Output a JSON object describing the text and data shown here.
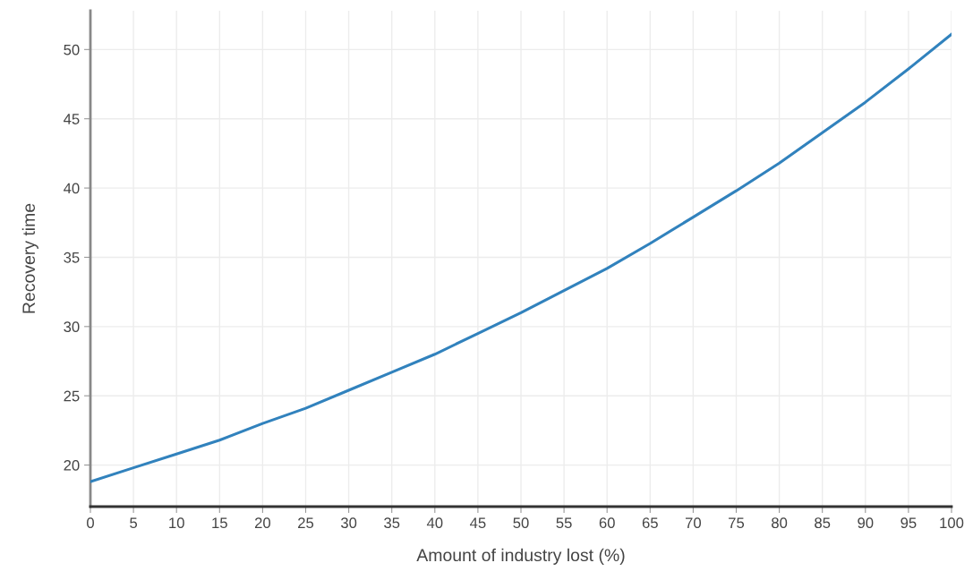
{
  "chart_data": {
    "type": "line",
    "xlabel": "Amount of industry lost (%)",
    "ylabel": "Recovery time",
    "x": [
      0,
      5,
      10,
      15,
      20,
      25,
      30,
      35,
      40,
      45,
      50,
      55,
      60,
      65,
      70,
      75,
      80,
      85,
      90,
      95,
      100
    ],
    "series": [
      {
        "color": "#3182bd",
        "values": [
          18.8,
          19.8,
          20.8,
          21.8,
          23.0,
          24.1,
          25.4,
          26.7,
          28.0,
          29.5,
          31.0,
          32.6,
          34.2,
          36.0,
          37.9,
          39.8,
          41.8,
          44.0,
          46.2,
          48.6,
          51.1
        ]
      }
    ],
    "xlim": [
      0,
      100
    ],
    "xticks": [
      0,
      5,
      10,
      15,
      20,
      25,
      30,
      35,
      40,
      45,
      50,
      55,
      60,
      65,
      70,
      75,
      80,
      85,
      90,
      95,
      100
    ],
    "ylim": [
      17,
      52.8
    ],
    "yticks": [
      20,
      25,
      30,
      35,
      40,
      45,
      50
    ],
    "grid": true,
    "marker": "none",
    "line_style": "solid",
    "legend": false
  }
}
